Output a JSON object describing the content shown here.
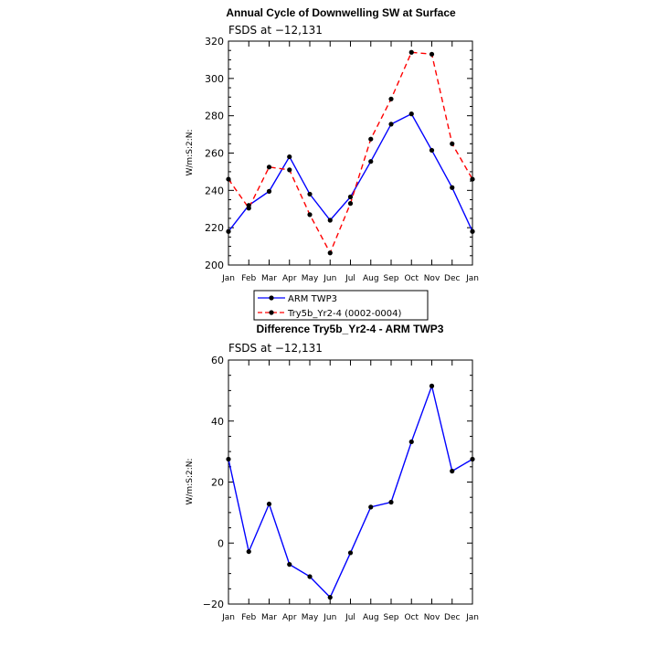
{
  "chart_data": [
    {
      "type": "line",
      "title": "Annual Cycle of Downwelling SW at Surface",
      "subtitle": "FSDS at −12,131",
      "xlabel": "",
      "ylabel": "W/m:S:2:N:",
      "categories": [
        "Jan",
        "Feb",
        "Mar",
        "Apr",
        "May",
        "Jun",
        "Jul",
        "Aug",
        "Sep",
        "Oct",
        "Nov",
        "Dec",
        "Jan"
      ],
      "ylim": [
        200,
        320
      ],
      "yticks": [
        200,
        220,
        240,
        260,
        280,
        300,
        320
      ],
      "series": [
        {
          "name": "ARM TWP3",
          "color": "#0000ff",
          "dash": "solid",
          "values": [
            218,
            232,
            239.5,
            258,
            238,
            224,
            236.5,
            255.5,
            275.5,
            281,
            261.5,
            241.5,
            218
          ]
        },
        {
          "name": "Try5b_Yr2-4 (0002-0004)",
          "color": "#ff0000",
          "dash": "dashed",
          "values": [
            246,
            230.5,
            252.5,
            251,
            227,
            206.5,
            233,
            267.5,
            289,
            314,
            313,
            265,
            246
          ]
        }
      ],
      "legend": "below"
    },
    {
      "type": "line",
      "title": "Difference Try5b_Yr2-4 - ARM TWP3",
      "subtitle": "FSDS at −12,131",
      "xlabel": "",
      "ylabel": "W/m:S:2:N:",
      "categories": [
        "Jan",
        "Feb",
        "Mar",
        "Apr",
        "May",
        "Jun",
        "Jul",
        "Aug",
        "Sep",
        "Oct",
        "Nov",
        "Dec",
        "Jan"
      ],
      "ylim": [
        -20,
        60
      ],
      "yticks": [
        -20,
        0,
        20,
        40,
        60
      ],
      "ytick_labels": [
        "−20",
        "0",
        "20",
        "40",
        "60"
      ],
      "series": [
        {
          "name": "Difference",
          "color": "#0000ff",
          "dash": "solid",
          "values": [
            27.5,
            -2.8,
            12.8,
            -7,
            -11,
            -17.8,
            -3.2,
            11.8,
            13.4,
            33.2,
            51.5,
            23.6,
            27.5
          ]
        }
      ]
    }
  ]
}
